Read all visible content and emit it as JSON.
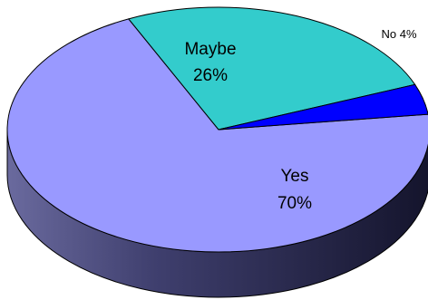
{
  "chart_data": {
    "type": "pie",
    "title": "",
    "style": "3d",
    "slices": [
      {
        "label": "Yes",
        "percent_label": "70%",
        "value": 70,
        "color": "#9999ff"
      },
      {
        "label": "Maybe",
        "percent_label": "26%",
        "value": 26,
        "color": "#33cccc"
      },
      {
        "label": "No",
        "percent_label": "4%",
        "value": 4,
        "color": "#0000ff"
      }
    ],
    "labels": {
      "yes_name": "Yes",
      "yes_pct": "70%",
      "maybe_name": "Maybe",
      "maybe_pct": "26%",
      "no": "No 4%"
    },
    "side_color": "#2e2e55"
  }
}
